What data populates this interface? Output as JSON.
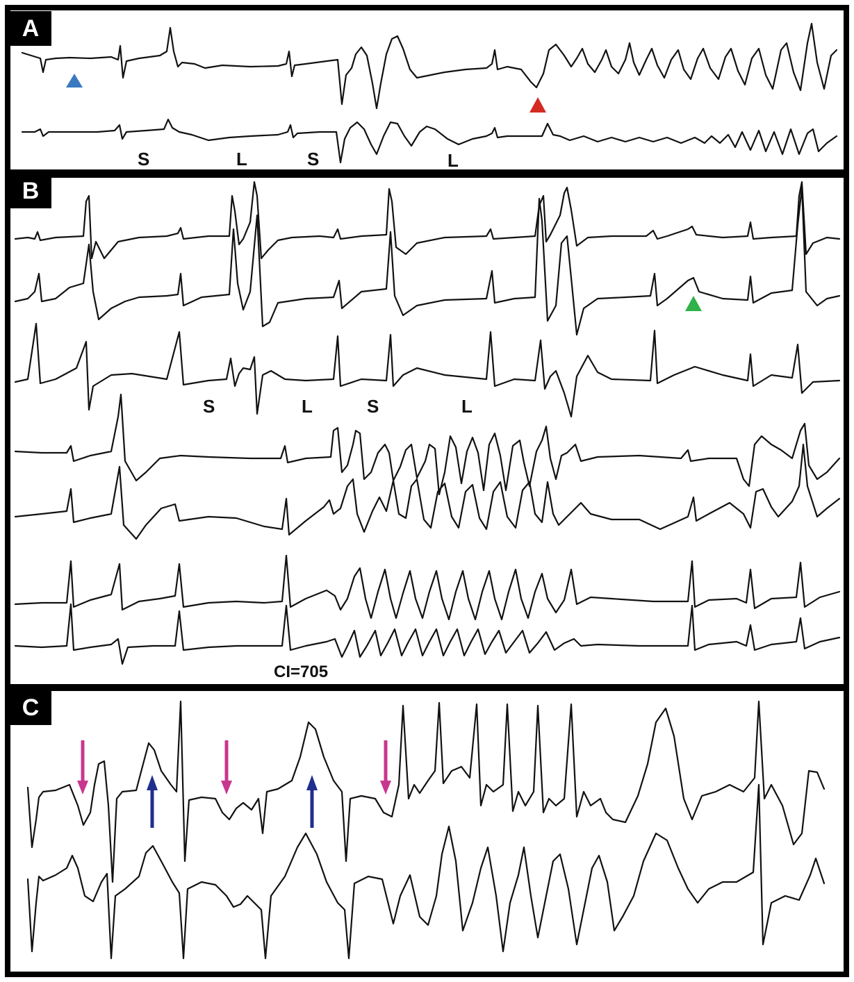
{
  "panels": [
    {
      "label": "A",
      "annotations": [
        "S",
        "L",
        "S",
        "L"
      ],
      "markers": [
        {
          "name": "blue-arrowhead",
          "color": "#3a78c2"
        },
        {
          "name": "red-arrowhead",
          "color": "#d42a22"
        }
      ]
    },
    {
      "label": "B",
      "annotations": [
        "S",
        "L",
        "S",
        "L",
        "CI=705"
      ],
      "markers": [
        {
          "name": "green-arrowhead",
          "color": "#2fb24a"
        }
      ]
    },
    {
      "label": "C",
      "markers": [
        {
          "name": "magenta-down-arrow",
          "color": "#c8378f"
        },
        {
          "name": "blue-up-arrow",
          "color": "#1f2f8f"
        }
      ]
    }
  ],
  "colors": {
    "frame": "#000000",
    "trace": "#111111",
    "blue_marker": "#3a78c2",
    "red_marker": "#d42a22",
    "green_marker": "#2fb24a",
    "magenta_arrow": "#c8378f",
    "navy_arrow": "#1f2f8f"
  }
}
